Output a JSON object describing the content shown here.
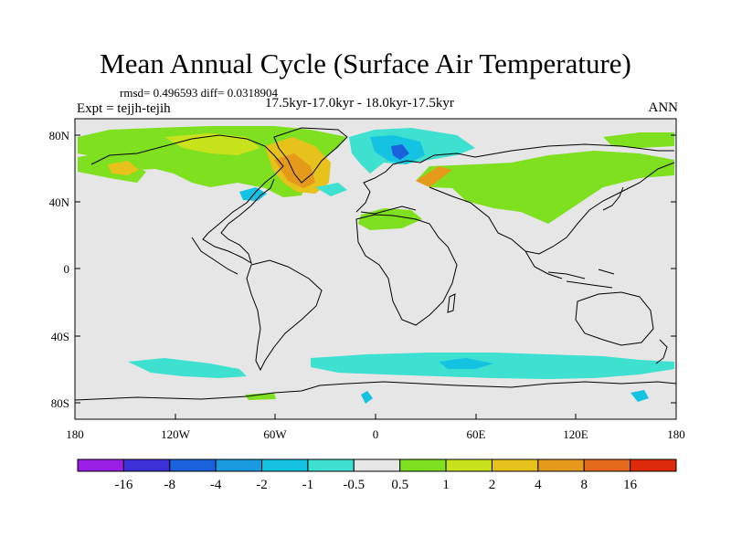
{
  "title": "Mean Annual Cycle (Surface Air Temperature)",
  "stats": "rmsd= 0.496593 diff= 0.0318904",
  "experiment": "Expt = tejjh-tejih",
  "period": "17.5kyr-17.0kyr - 18.0kyr-17.5kyr",
  "season": "ANN",
  "lat_labels": [
    "80N",
    "40N",
    "0",
    "40S",
    "80S"
  ],
  "lon_labels": [
    "180",
    "120W",
    "60W",
    "0",
    "60E",
    "120E",
    "180"
  ],
  "colorbar": {
    "labels": [
      "-16",
      "-8",
      "-4",
      "-2",
      "-1",
      "-0.5",
      "0.5",
      "1",
      "2",
      "4",
      "8",
      "16"
    ],
    "colors": [
      "#9a1ee6",
      "#3a30d6",
      "#1a62dc",
      "#1a9ae0",
      "#14c2e2",
      "#3ee0d0",
      "#e6e6e6",
      "#7ee01e",
      "#c8e21c",
      "#e6c21a",
      "#e69a1c",
      "#e66a1c",
      "#dc2a0a"
    ]
  },
  "palette": {
    "ocean": "#e6e6e6",
    "coast": "#000000"
  }
}
